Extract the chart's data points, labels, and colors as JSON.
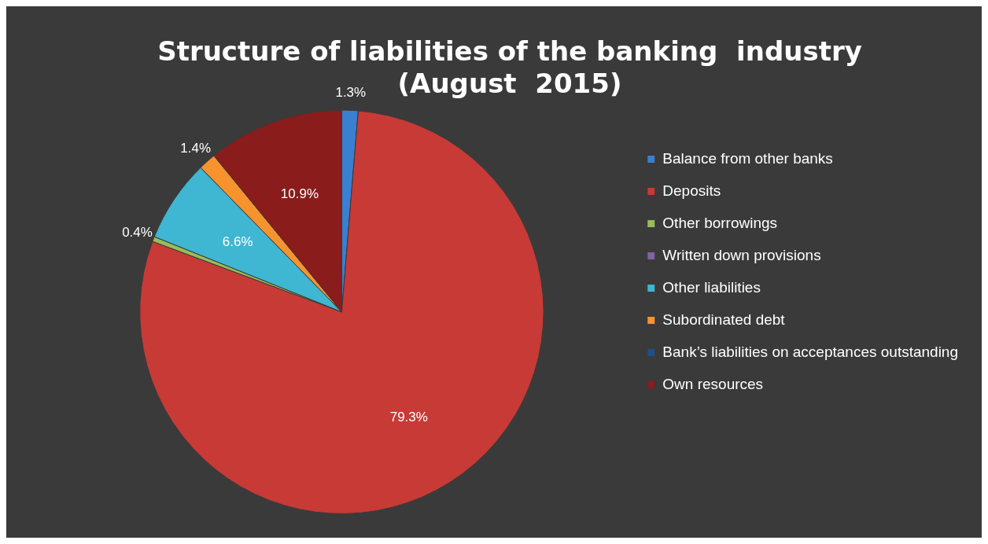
{
  "chart_data": {
    "type": "pie",
    "title": "Structure of liabilities of the banking  industry\n(August  2015)",
    "categories": [
      "Balance from other banks",
      "Deposits",
      "Other borrowings",
      "Written down provisions",
      "Other liabilities",
      "Subordinated debt",
      "Bank’s liabilities on acceptances outstanding",
      "Own resources"
    ],
    "values": [
      1.3,
      79.3,
      0.4,
      0,
      6.6,
      1.4,
      0,
      10.9
    ],
    "value_labels": [
      "1.3%",
      "79.3%",
      "0.4%",
      null,
      "6.6%",
      "1.4%",
      null,
      "10.9%"
    ],
    "colors": [
      "#3b7fd0",
      "#c73a36",
      "#9bbb59",
      "#8064a2",
      "#3fb6d2",
      "#f7932e",
      "#1f4e8c",
      "#8a1c1c"
    ],
    "legend": "right"
  }
}
